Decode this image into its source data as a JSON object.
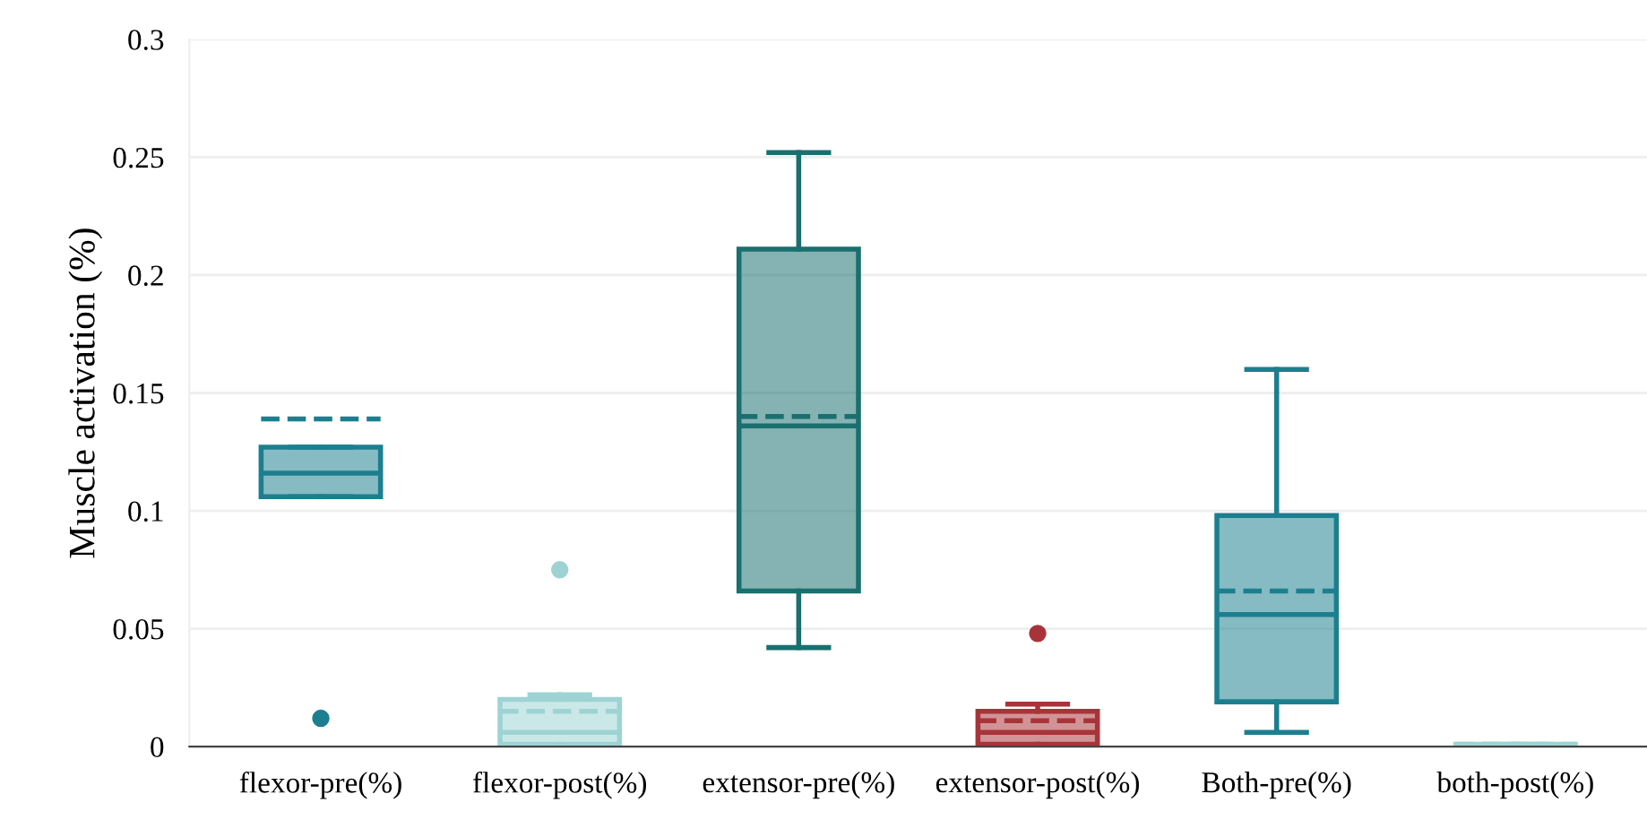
{
  "chart_data": {
    "type": "box",
    "ylabel": "Muscle activation (%)",
    "categories": [
      "flexor-pre(%)",
      "flexor-post(%)",
      "extensor-pre(%)",
      "extensor-post(%)",
      "Both-pre(%)",
      "both-post(%)"
    ],
    "boxes": [
      {
        "low": 0.106,
        "q1": 0.106,
        "median": 0.116,
        "q3": 0.127,
        "high": 0.127,
        "mean": 0.139,
        "outliers": [
          0.012
        ]
      },
      {
        "low": 0.0,
        "q1": 0.001,
        "median": 0.006,
        "q3": 0.02,
        "high": 0.022,
        "mean": 0.015,
        "outliers": [
          0.075
        ]
      },
      {
        "low": 0.042,
        "q1": 0.066,
        "median": 0.136,
        "q3": 0.211,
        "high": 0.252,
        "mean": 0.14
      },
      {
        "low": 0.0,
        "q1": 0.001,
        "median": 0.006,
        "q3": 0.015,
        "high": 0.018,
        "mean": 0.011,
        "outliers": [
          0.048
        ]
      },
      {
        "low": 0.006,
        "q1": 0.019,
        "median": 0.056,
        "q3": 0.098,
        "high": 0.16,
        "mean": 0.066
      },
      {
        "low": 0.0,
        "q1": 0.0,
        "median": 0.0,
        "q3": 0.001,
        "high": 0.001,
        "mean": 0.001
      }
    ],
    "colors": [
      "#1c7f8f",
      "#9ed3d3",
      "#1a6f6f",
      "#a8343a",
      "#1c7f8f",
      "#9ed3d3"
    ],
    "ylim": [
      0,
      0.3
    ],
    "yticks": [
      0,
      0.05,
      0.1,
      0.15,
      0.2,
      0.25,
      0.3
    ],
    "grid": "y"
  }
}
